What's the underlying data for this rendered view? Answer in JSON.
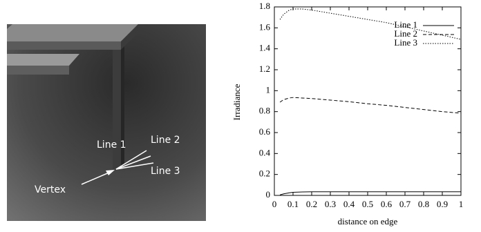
{
  "figure": {
    "labels": [
      "Line 1",
      "Line 2",
      "Line 3",
      "Vertex"
    ]
  },
  "chart_data": {
    "type": "line",
    "xlabel": "distance on edge",
    "ylabel": "Irradiance",
    "x": [
      0.03,
      0.05,
      0.08,
      0.1,
      0.15,
      0.2,
      0.3,
      0.4,
      0.5,
      0.6,
      0.7,
      0.8,
      0.9,
      1.0
    ],
    "series": [
      {
        "name": "Line 1",
        "color": "#000000",
        "dash": "solid",
        "values": [
          0.005,
          0.015,
          0.025,
          0.03,
          0.033,
          0.035,
          0.035,
          0.035,
          0.035,
          0.035,
          0.035,
          0.035,
          0.035,
          0.035
        ]
      },
      {
        "name": "Line 2",
        "color": "#000000",
        "dash": "dashed",
        "values": [
          0.89,
          0.915,
          0.93,
          0.935,
          0.93,
          0.925,
          0.91,
          0.895,
          0.875,
          0.86,
          0.84,
          0.82,
          0.8,
          0.785
        ]
      },
      {
        "name": "Line 3",
        "color": "#000000",
        "dash": "dotted",
        "values": [
          1.68,
          1.73,
          1.77,
          1.78,
          1.78,
          1.77,
          1.74,
          1.71,
          1.68,
          1.65,
          1.61,
          1.57,
          1.53,
          1.49
        ]
      }
    ],
    "xlim": [
      0,
      1
    ],
    "ylim": [
      0,
      1.8
    ],
    "xticks": [
      0,
      0.1,
      0.2,
      0.3,
      0.4,
      0.5,
      0.6,
      0.7,
      0.8,
      0.9,
      1
    ],
    "yticks": [
      0,
      0.2,
      0.4,
      0.6,
      0.8,
      1,
      1.2,
      1.4,
      1.6,
      1.8
    ],
    "legend": "top-right"
  }
}
